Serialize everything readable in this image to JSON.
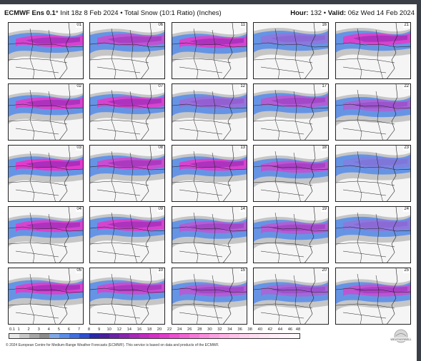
{
  "header": {
    "model": "ECMWF Ens 0.1°",
    "init": "Init 18z 8 Feb 2024",
    "bullet": "•",
    "product": "Total Snow (10:1 Ratio) (Inches)",
    "hour_label": "Hour:",
    "hour_value": "132",
    "valid_label": "Valid:",
    "valid_value": "06z Wed 14 Feb 2024"
  },
  "members": [
    "01",
    "06",
    "11",
    "16",
    "21",
    "02",
    "07",
    "12",
    "17",
    "22",
    "03",
    "08",
    "13",
    "18",
    "23",
    "04",
    "09",
    "14",
    "19",
    "24",
    "05",
    "10",
    "15",
    "20",
    "25"
  ],
  "legend": {
    "labels": [
      "0.1",
      "1",
      "2",
      "3",
      "4",
      "5",
      "6",
      "7",
      "8",
      "9",
      "10",
      "12",
      "14",
      "16",
      "18",
      "20",
      "22",
      "24",
      "26",
      "28",
      "30",
      "32",
      "34",
      "36",
      "38",
      "40",
      "42",
      "44",
      "46",
      "48"
    ],
    "colors": [
      "#e8e8e8",
      "#c8c8c8",
      "#a6a6a6",
      "#8c8c8c",
      "#7fa8e8",
      "#5b8ee8",
      "#3f6fe0",
      "#2d4fd0",
      "#2a2aa8",
      "#4a1f9e",
      "#6a22a8",
      "#8a25b0",
      "#a828b8",
      "#c02cc0",
      "#d631c6",
      "#e23bcc",
      "#ec4fd0",
      "#f263d4",
      "#f678d8",
      "#f98ddc",
      "#fba1e0",
      "#fcb2e4",
      "#fdc2e8",
      "#fdd0ec",
      "#fedcf0",
      "#fee6f4",
      "#ffeef8",
      "#fff4fb",
      "#fff9fd"
    ]
  },
  "copyright": "© 2024 European Centre for Medium-Range Weather Forecasts (ECMWF). This service is based on data and products of the ECMWF.",
  "logo_text": "WeatherBELL"
}
